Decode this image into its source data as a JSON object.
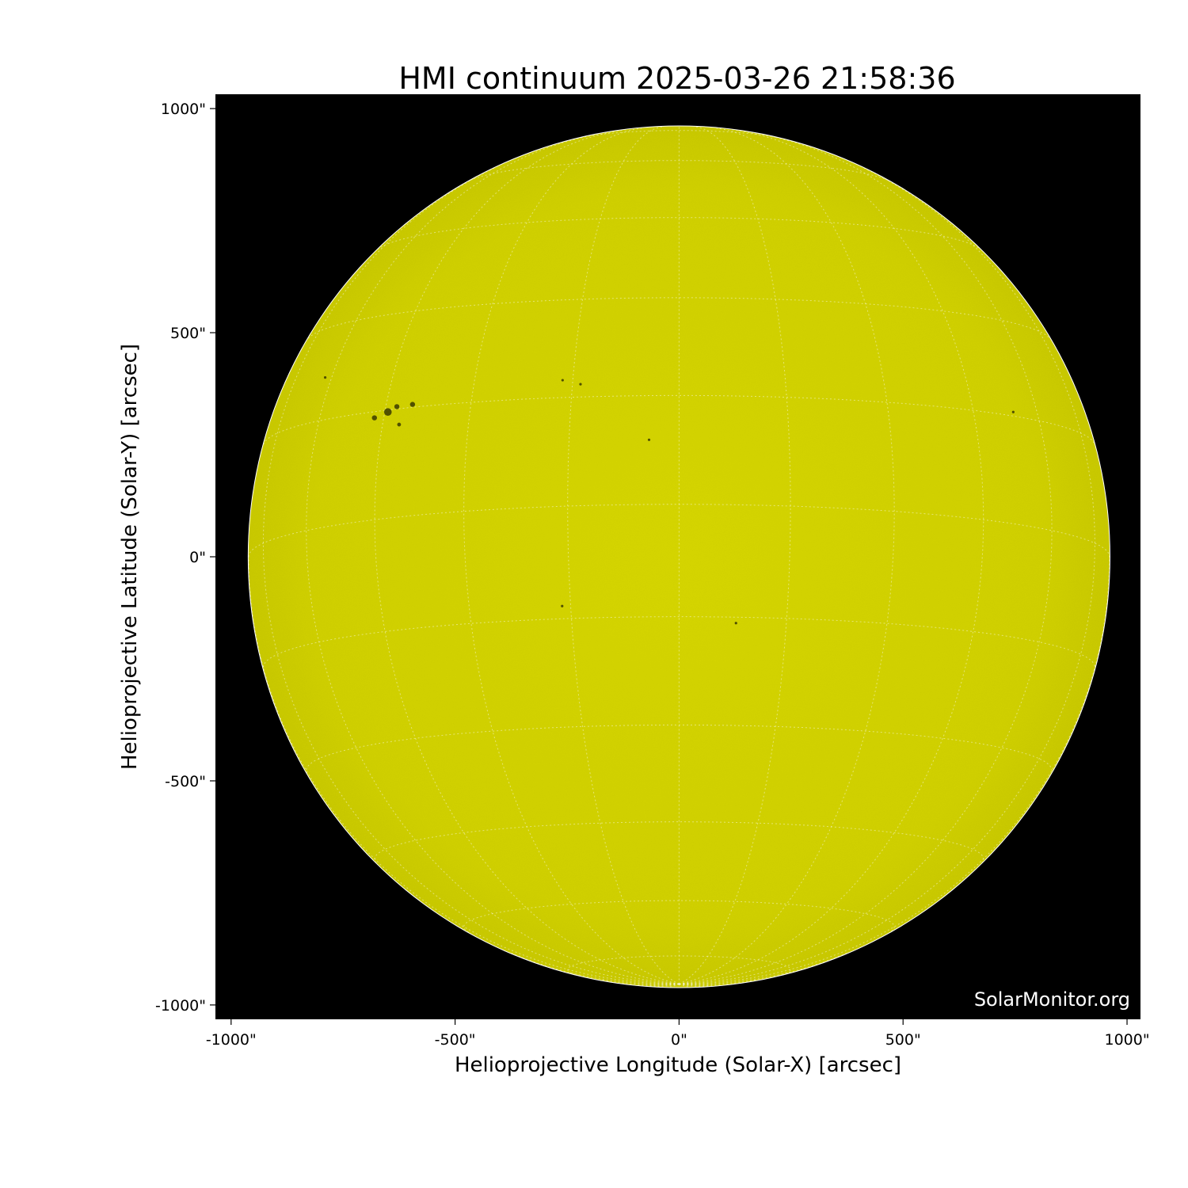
{
  "chart_data": {
    "type": "image",
    "title": "HMI continuum 2025-03-26 21:58:36",
    "xlabel": "Helioprojective Longitude (Solar-X) [arcsec]",
    "ylabel": "Helioprojective Latitude (Solar-Y) [arcsec]",
    "xlim": [
      -1035,
      1030
    ],
    "ylim": [
      -1032,
      1032
    ],
    "xticks": [
      -1000,
      -500,
      0,
      500,
      1000
    ],
    "yticks": [
      -1000,
      -500,
      0,
      500,
      1000
    ],
    "xtick_labels": [
      "-1000\"",
      "-500\"",
      "0\"",
      "500\"",
      "1000\""
    ],
    "ytick_labels": [
      "-1000\"",
      "-500\"",
      "0\"",
      "500\"",
      "1000\""
    ],
    "solar_radius_arcsec": 961,
    "grid": true,
    "grid_spacing_deg": 15,
    "colors": {
      "disk": "#cccc00",
      "background": "#000000",
      "grid": "#ffffff"
    },
    "sunspots": [
      {
        "x": -650,
        "y": 323,
        "size": 3
      },
      {
        "x": -630,
        "y": 335,
        "size": 2
      },
      {
        "x": -680,
        "y": 310,
        "size": 2
      },
      {
        "x": -595,
        "y": 340,
        "size": 2
      },
      {
        "x": -625,
        "y": 295,
        "size": 1.5
      },
      {
        "x": -790,
        "y": 400,
        "size": 1
      },
      {
        "x": -260,
        "y": 394,
        "size": 1
      },
      {
        "x": -220,
        "y": 385,
        "size": 1
      },
      {
        "x": 746,
        "y": 323,
        "size": 1
      },
      {
        "x": -261,
        "y": -110,
        "size": 1
      },
      {
        "x": 127,
        "y": -148,
        "size": 1
      },
      {
        "x": -67,
        "y": 261,
        "size": 1
      }
    ]
  },
  "watermark": "SolarMonitor.org"
}
